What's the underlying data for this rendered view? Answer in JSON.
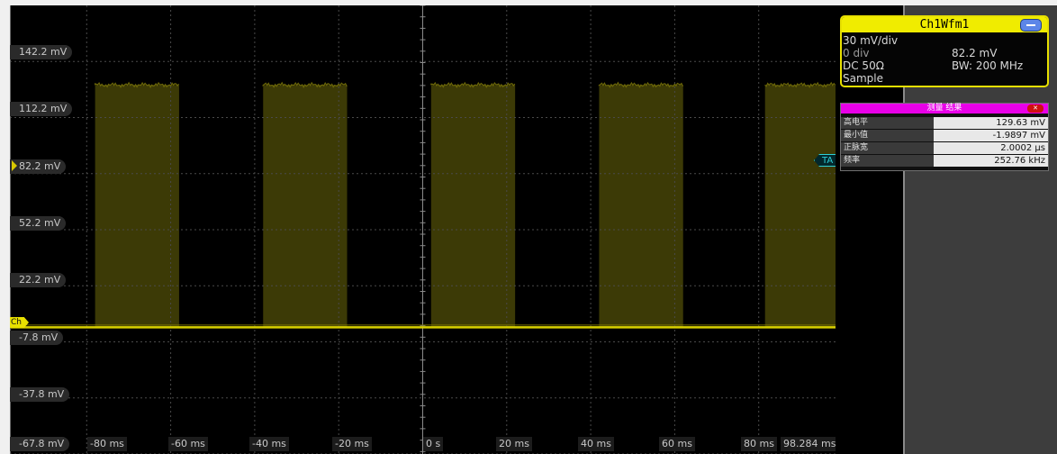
{
  "channel_badge": {
    "title": "Ch1Wfm1",
    "vertical_scale": "30 mV/div",
    "position": "0 div",
    "offset": "82.2 mV",
    "coupling": "DC 50Ω",
    "bandwidth": "BW: 200 MHz",
    "acquisition_mode": "Sample",
    "color": "#e8e000"
  },
  "measurement_panel": {
    "title": "测量 结果",
    "header_color": "#e800e8",
    "rows": [
      {
        "name": "高电平",
        "value": "129.63 mV"
      },
      {
        "name": "最小值",
        "value": "-1.9897 mV"
      },
      {
        "name": "正脉宽",
        "value": "2.0002 µs"
      },
      {
        "name": "频率",
        "value": "252.76 kHz"
      }
    ]
  },
  "display": {
    "trace_color": "#d8d000",
    "burst_fill_color": "#3c3a06",
    "grid_color": "#4a4a4a",
    "trigger_color": "#2ed0d8",
    "channel_marker": "Ch",
    "trigger_marker": "TA",
    "y_labels": [
      "142.2 mV",
      "112.2 mV",
      "82.2 mV",
      "52.2 mV",
      "22.2 mV",
      "-7.8 mV",
      "-37.8 mV",
      "-67.8 mV"
    ],
    "x_labels": [
      "-80 ms",
      "-60 ms",
      "-40 ms",
      "-20 ms",
      "0 s",
      "20 ms",
      "40 ms",
      "60 ms",
      "80 ms",
      "98.284 ms"
    ]
  },
  "chart_data": {
    "type": "line",
    "title": "",
    "xlabel": "",
    "ylabel": "",
    "xlim": [
      -98.284,
      98.284
    ],
    "ylim": [
      -67.8,
      172.2
    ],
    "x_ticks": [
      -80,
      -60,
      -40,
      -20,
      0,
      20,
      40,
      60,
      80
    ],
    "y_ticks": [
      142.2,
      112.2,
      82.2,
      52.2,
      22.2,
      -7.8,
      -37.8,
      -67.8
    ],
    "baseline_mV": 0,
    "burst_high_mV": 129.63,
    "burst_intervals_ms": [
      [
        -78,
        -58
      ],
      [
        -38,
        -18
      ],
      [
        2,
        22
      ],
      [
        42,
        62
      ],
      [
        81.5,
        98.284
      ]
    ],
    "x_unit": "ms",
    "y_unit": "mV"
  }
}
